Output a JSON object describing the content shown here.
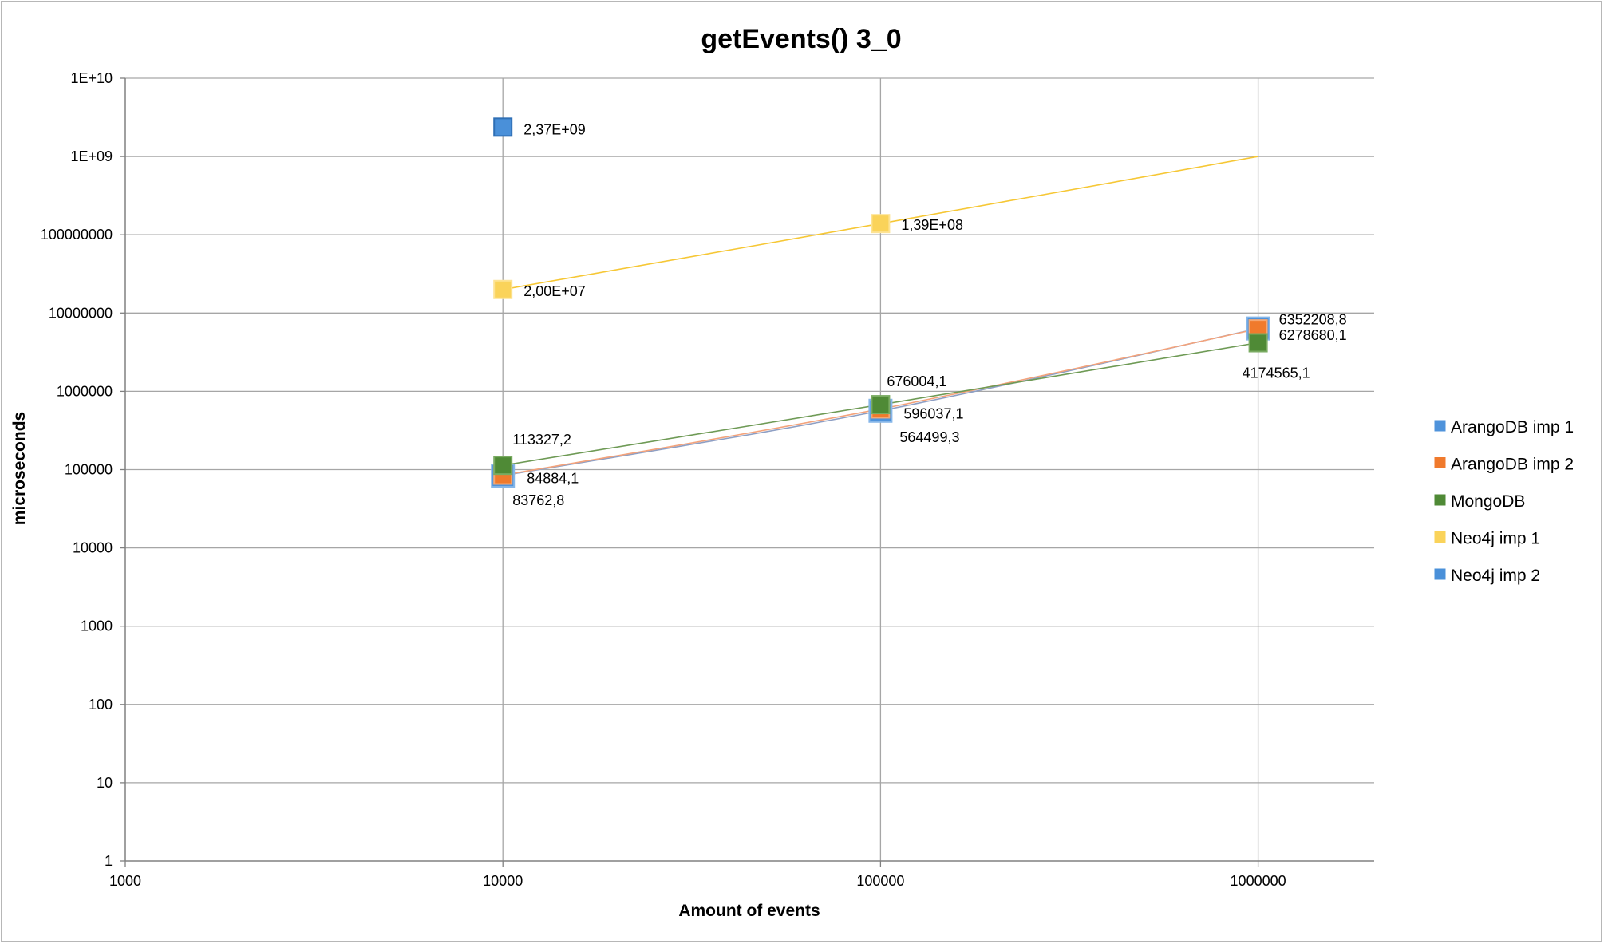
{
  "chart_data": {
    "type": "scatter",
    "title": "getEvents() 3_0",
    "xlabel": "Amount of events",
    "ylabel": "microseconds",
    "x_scale": "log",
    "y_scale": "log",
    "xlim": [
      1000,
      2000000
    ],
    "ylim": [
      1,
      10000000000
    ],
    "grid": true,
    "legend_position": "right",
    "x_ticks": [
      "1000",
      "10000",
      "100000",
      "1000000"
    ],
    "y_ticks": [
      "1",
      "10",
      "100",
      "1000",
      "10000",
      "100000",
      "1000000",
      "10000000",
      "100000000",
      "1E+09",
      "1E+10"
    ],
    "series": [
      {
        "name": "ArangoDB imp 1",
        "color": "#4a90d9",
        "x": [
          10000,
          100000,
          1000000
        ],
        "y": [
          83762.8,
          564499.3,
          6352208.8
        ],
        "labels": [
          "83762,8",
          "564499,3",
          "6352208,8"
        ]
      },
      {
        "name": "ArangoDB imp 2",
        "color": "#f07a2c",
        "x": [
          10000,
          100000,
          1000000
        ],
        "y": [
          84884.1,
          596037.1,
          6278680.1
        ],
        "labels": [
          "84884,1",
          "596037,1",
          "6278680,1"
        ]
      },
      {
        "name": "MongoDB",
        "color": "#4f8a36",
        "x": [
          10000,
          100000,
          1000000
        ],
        "y": [
          113327.2,
          676004.1,
          4174565.1
        ],
        "labels": [
          "113327,2",
          "676004,1",
          "4174565,1"
        ]
      },
      {
        "name": "Neo4j imp 1",
        "color": "#f9cf4b",
        "x": [
          10000,
          100000,
          1000000
        ],
        "y": [
          20000000,
          139000000,
          1000000000
        ],
        "labels": [
          "2,00E+07",
          "1,39E+08",
          ""
        ]
      },
      {
        "name": "Neo4j imp 2",
        "color": "#4a90d9",
        "x": [
          10000
        ],
        "y": [
          2370000000
        ],
        "labels": [
          "2,37E+09"
        ]
      }
    ]
  }
}
